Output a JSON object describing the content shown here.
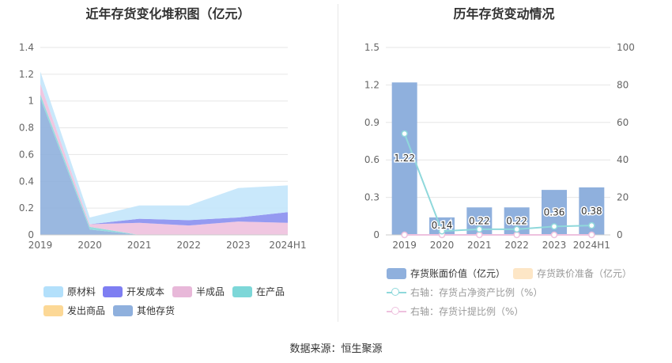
{
  "left_chart": {
    "title": "近年存货变化堆积图（亿元）"
  },
  "right_chart": {
    "title": "历年存货变动情况"
  },
  "source": "数据来源：恒生聚源",
  "chart_data": [
    {
      "type": "area",
      "title": "近年存货变化堆积图（亿元）",
      "stacked": true,
      "categories": [
        "2019",
        "2020",
        "2021",
        "2022",
        "2023",
        "2024H1"
      ],
      "ylim": [
        0,
        1.4
      ],
      "yticks": [
        "0",
        "0.2",
        "0.4",
        "0.6",
        "0.8",
        "1",
        "1.2",
        "1.4"
      ],
      "grid": true,
      "legend_position": "bottom",
      "series": [
        {
          "name": "其他存货",
          "color": "#8fb0dd",
          "values": [
            1.02,
            0.04,
            0.0,
            0.0,
            0.0,
            0.0
          ]
        },
        {
          "name": "发出商品",
          "color": "#fbd89a",
          "values": [
            0.0,
            0.0,
            0.0,
            0.0,
            0.0,
            0.0
          ]
        },
        {
          "name": "在产品",
          "color": "#8ad8da",
          "values": [
            0.03,
            0.02,
            0.0,
            0.0,
            0.0,
            0.0
          ]
        },
        {
          "name": "半成品",
          "color": "#eec1de",
          "values": [
            0.08,
            0.02,
            0.09,
            0.07,
            0.1,
            0.09
          ]
        },
        {
          "name": "开发成本",
          "color": "#8a8ff0",
          "values": [
            0.0,
            0.0,
            0.03,
            0.04,
            0.03,
            0.08
          ]
        },
        {
          "name": "原材料",
          "color": "#c3e6fb",
          "values": [
            0.09,
            0.05,
            0.1,
            0.11,
            0.22,
            0.2
          ]
        }
      ],
      "legend": [
        {
          "name": "原材料",
          "color": "#b3e0fb"
        },
        {
          "name": "开发成本",
          "color": "#7e7ef2"
        },
        {
          "name": "半成品",
          "color": "#e8b8d9"
        },
        {
          "name": "在产品",
          "color": "#7dd7d8"
        },
        {
          "name": "发出商品",
          "color": "#fcd896"
        },
        {
          "name": "其他存货",
          "color": "#8fb0dd"
        }
      ]
    },
    {
      "type": "bar",
      "title": "历年存货变动情况",
      "categories": [
        "2019",
        "2020",
        "2021",
        "2022",
        "2023",
        "2024H1"
      ],
      "ylim_left": [
        0,
        1.5
      ],
      "yticks_left": [
        "0",
        "0.3",
        "0.6",
        "0.9",
        "1.2",
        "1.5"
      ],
      "ylim_right": [
        0,
        100
      ],
      "yticks_right": [
        "0",
        "20",
        "40",
        "60",
        "80",
        "100"
      ],
      "grid": true,
      "legend_position": "bottom",
      "series": [
        {
          "name": "存货账面价值（亿元）",
          "kind": "bar",
          "axis": "left",
          "color": "#8fb0dd",
          "values": [
            1.22,
            0.14,
            0.22,
            0.22,
            0.36,
            0.38
          ],
          "labels": [
            "1.22",
            "0.14",
            "0.22",
            "0.22",
            "0.36",
            "0.38"
          ]
        },
        {
          "name": "存货跌价准备（亿元）",
          "kind": "bar",
          "axis": "left",
          "color": "#fde6c6",
          "values": [
            0,
            0,
            0,
            0,
            0,
            0
          ]
        },
        {
          "name": "右轴：存货占净资产比例（%）",
          "kind": "line",
          "axis": "right",
          "color": "#8fd8db",
          "values": [
            54,
            2,
            3,
            3,
            4.5,
            5
          ]
        },
        {
          "name": "右轴：存货计提比例（%）",
          "kind": "line",
          "axis": "right",
          "color": "#eec1de",
          "values": [
            0,
            0,
            0,
            0,
            0,
            0
          ]
        }
      ]
    }
  ]
}
